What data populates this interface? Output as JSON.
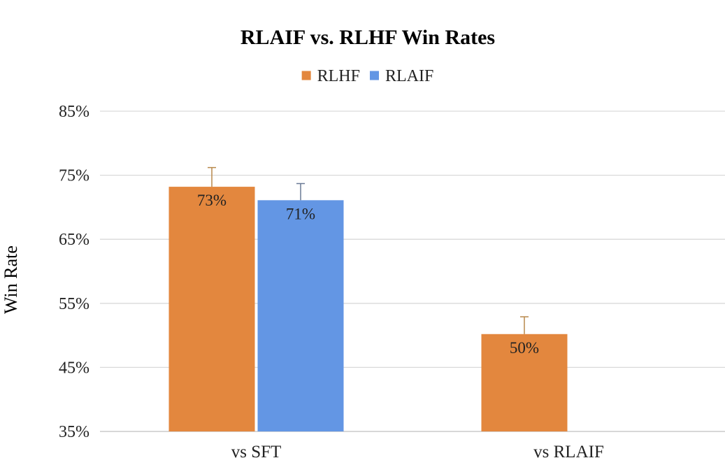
{
  "chart_data": {
    "type": "bar",
    "title": "RLAIF vs. RLHF Win Rates",
    "xlabel": "",
    "ylabel": "Win Rate",
    "categories": [
      "vs SFT",
      "vs RLAIF"
    ],
    "series": [
      {
        "name": "RLHF",
        "color": "#E3873E",
        "errorColor": "#B8894A",
        "values": [
          73.2,
          50.2
        ],
        "labels": [
          "73%",
          "50%"
        ],
        "error": [
          3.0,
          2.7
        ]
      },
      {
        "name": "RLAIF",
        "color": "#6396E4",
        "errorColor": "#6A7A95",
        "values": [
          71.1,
          null
        ],
        "labels": [
          "71%",
          ""
        ],
        "error": [
          2.6,
          null
        ]
      }
    ],
    "ylim": [
      35,
      85
    ],
    "yticks": [
      35,
      45,
      55,
      65,
      75,
      85
    ],
    "ytick_labels": [
      "35%",
      "45%",
      "55%",
      "65%",
      "75%",
      "85%"
    ],
    "grid": true,
    "legend_position": "top-center"
  }
}
